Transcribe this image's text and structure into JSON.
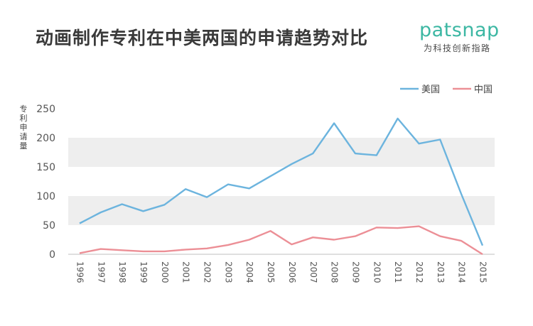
{
  "header": {
    "title": "动画制作专利在中美两国的申请趋势对比",
    "logo_word": "patsnap",
    "logo_tagline": "为科技创新指路"
  },
  "colors": {
    "us_line": "#6cb4de",
    "cn_line": "#ec8f96",
    "band": "#eeeeee",
    "logo": "#3cb7a3"
  },
  "chart_data": {
    "type": "line",
    "ylabel": "专利申请量",
    "ylim": [
      0,
      250
    ],
    "yticks": [
      "0",
      "50",
      "100",
      "150",
      "200",
      "250"
    ],
    "grid": "alternating horizontal bands",
    "legend_position": "top-right",
    "x": [
      "1996",
      "1997",
      "1998",
      "1999",
      "2000",
      "2001",
      "2002",
      "2003",
      "2004",
      "2005",
      "2006",
      "2007",
      "2008",
      "2009",
      "2010",
      "2011",
      "2012",
      "2013",
      "2014",
      "2015"
    ],
    "series": [
      {
        "name": "美国",
        "values": [
          53,
          72,
          86,
          74,
          85,
          112,
          98,
          120,
          113,
          134,
          155,
          173,
          225,
          173,
          170,
          233,
          190,
          197,
          103,
          15
        ]
      },
      {
        "name": "中国",
        "values": [
          2,
          9,
          7,
          5,
          5,
          8,
          10,
          16,
          25,
          40,
          17,
          29,
          25,
          31,
          46,
          45,
          48,
          31,
          23,
          0
        ]
      }
    ]
  }
}
